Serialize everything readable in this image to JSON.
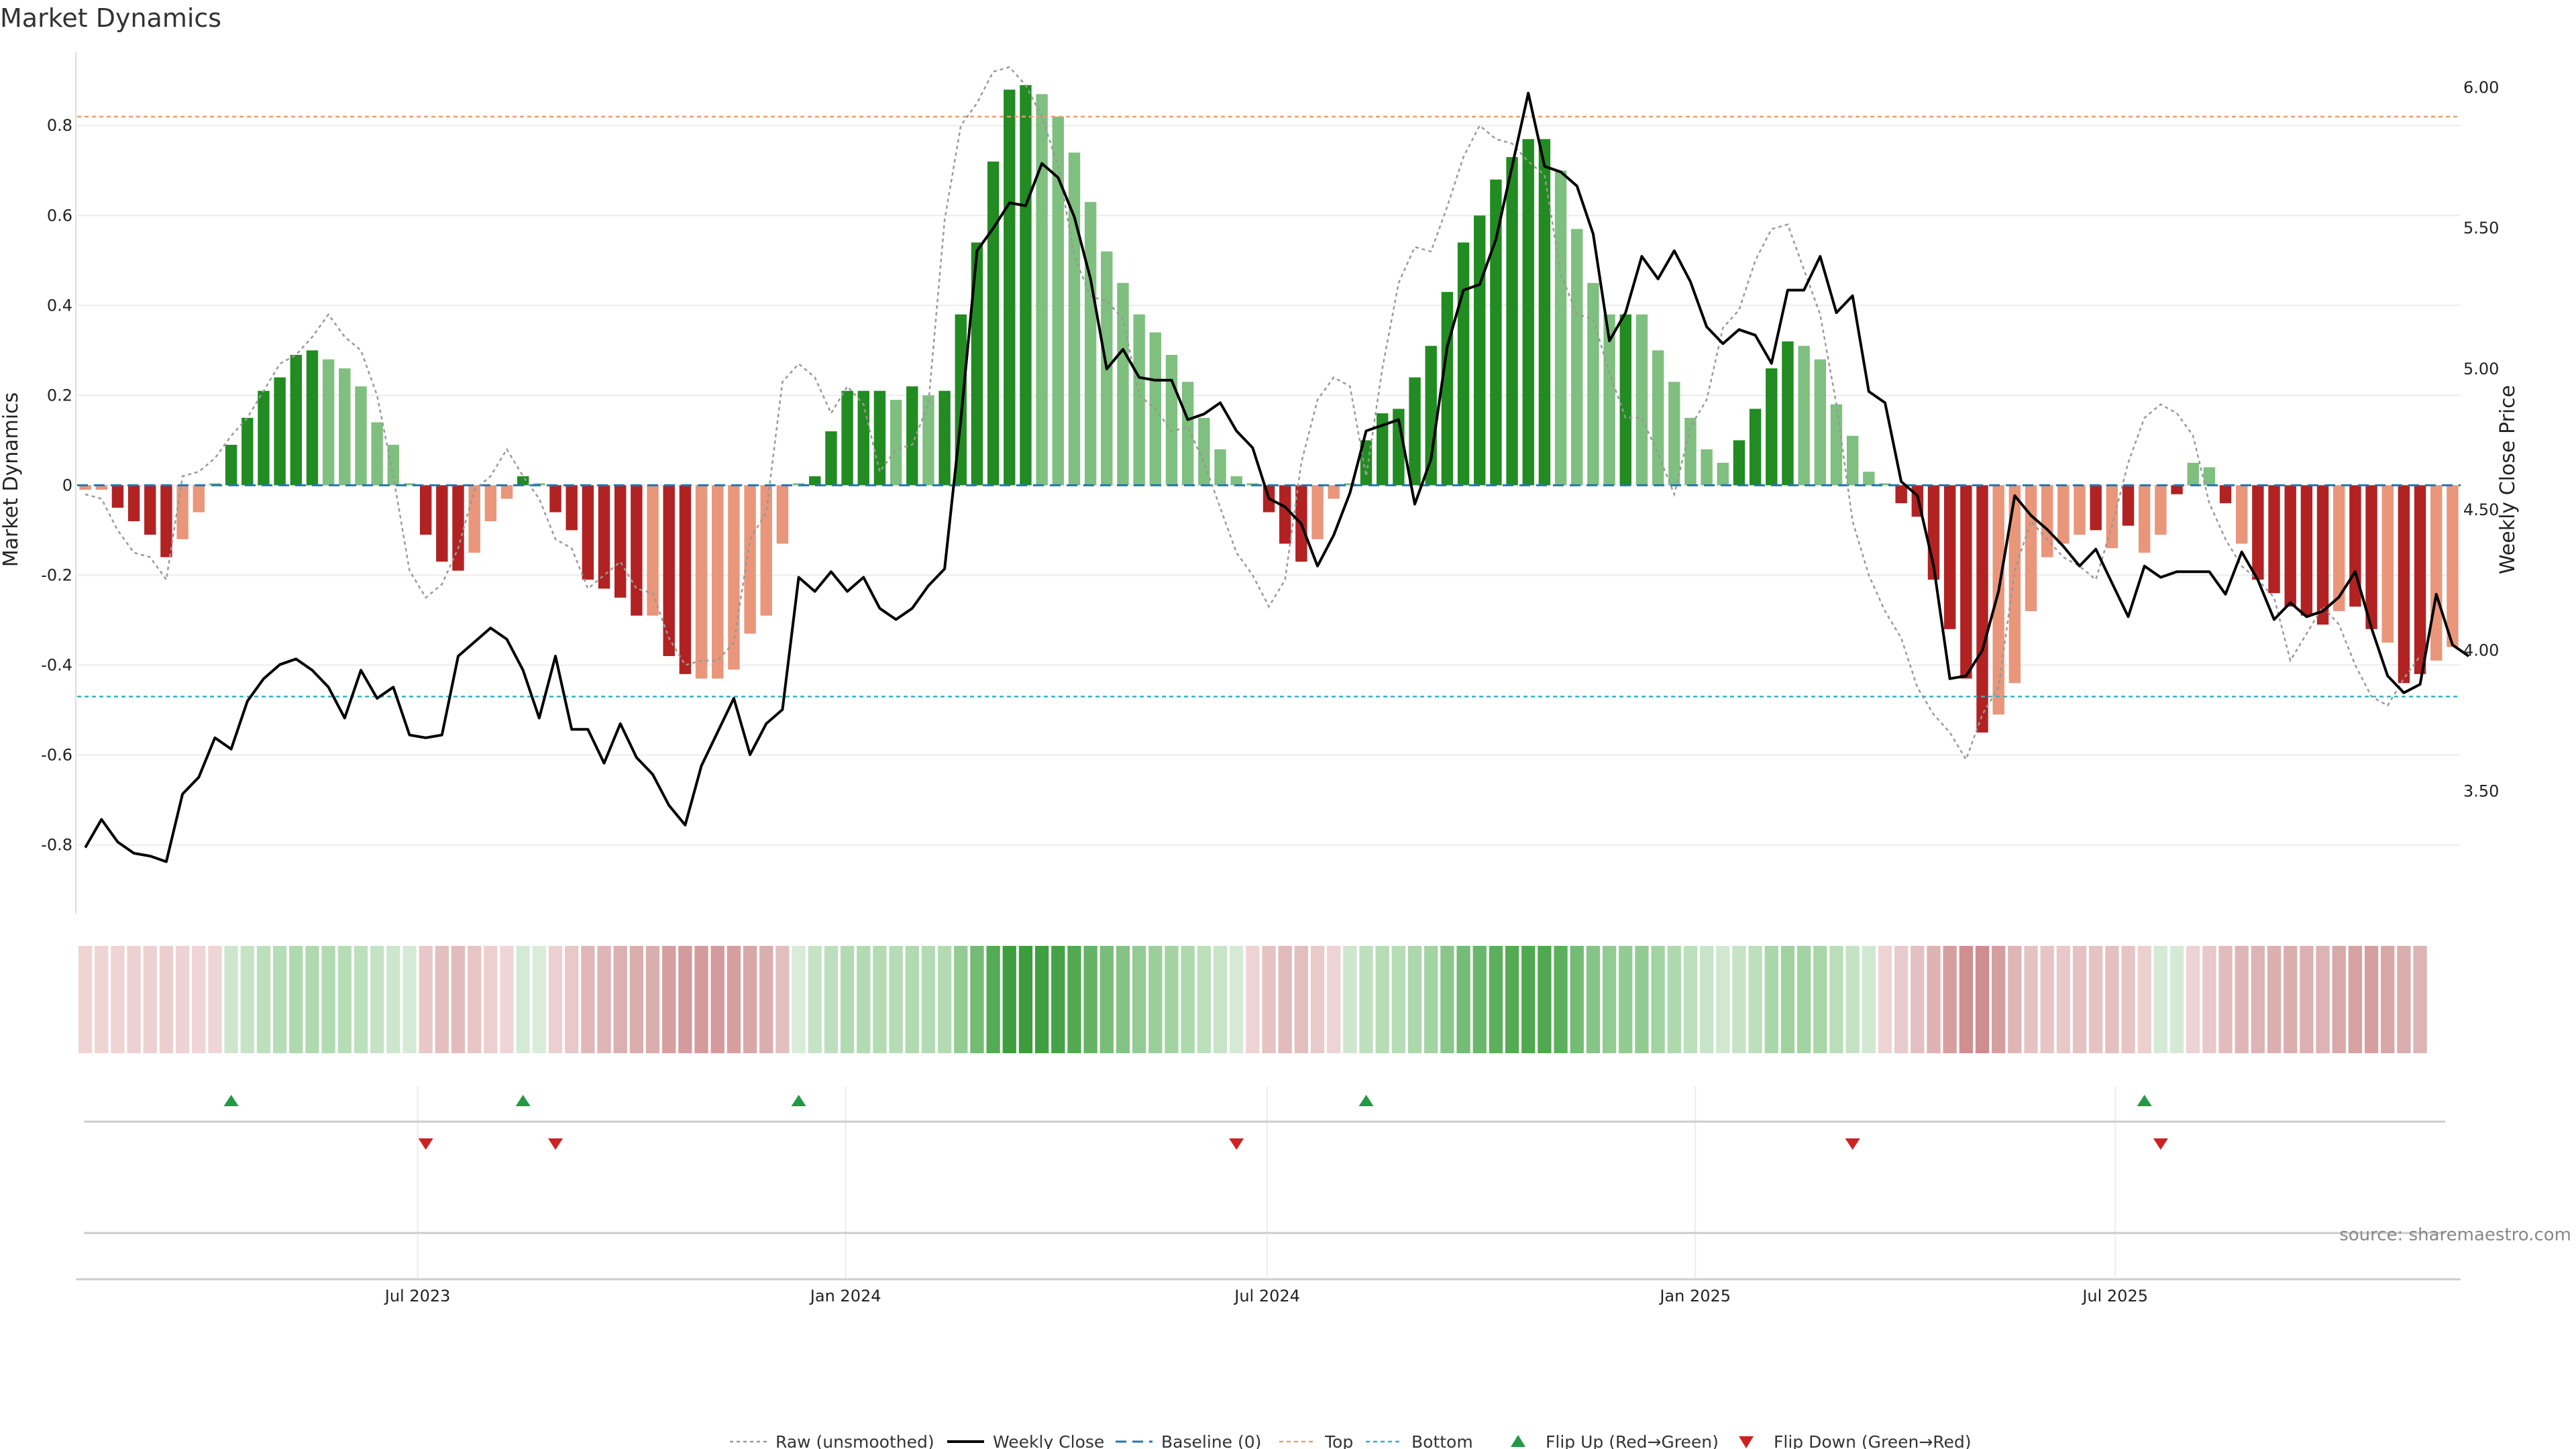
{
  "chart_data": {
    "type": "bar",
    "title": "Market Dynamics",
    "ylabel": "Market Dynamics",
    "y2label": "Weekly Close Price",
    "source": "source: sharemaestro.com",
    "ylim": [
      -0.95,
      0.96
    ],
    "y2lim": [
      3.07,
      6.12
    ],
    "yticks": [
      "-0.8",
      "-0.6",
      "-0.4",
      "-0.2",
      "0",
      "0.2",
      "0.4",
      "0.6",
      "0.8"
    ],
    "y2ticks": [
      "3.50",
      "4.00",
      "4.50",
      "5.00",
      "5.50",
      "6.00"
    ],
    "xticks": [
      {
        "label": "Jul 2023",
        "week": 20.5
      },
      {
        "label": "Jan 2024",
        "week": 46.9
      },
      {
        "label": "Jul 2024",
        "week": 72.9
      },
      {
        "label": "Jan 2025",
        "week": 99.3
      },
      {
        "label": "Jul 2025",
        "week": 125.2
      }
    ],
    "top_level": 0.82,
    "bottom_level": -0.47,
    "colors": {
      "strong_green": "#228b22",
      "light_green": "#7fbf7f",
      "strong_red": "#b22222",
      "light_red": "#e9967a",
      "top_line": "#e8a06a",
      "bottom_line": "#2ab6c8",
      "baseline": "#1f77b4",
      "raw": "#999999",
      "close": "#000000",
      "flip_up": "#229944",
      "flip_down": "#cc2222"
    },
    "smoothed": [
      -0.01,
      -0.01,
      -0.05,
      -0.08,
      -0.11,
      -0.16,
      -0.12,
      -0.06,
      0,
      0.09,
      0.15,
      0.21,
      0.24,
      0.29,
      0.3,
      0.28,
      0.26,
      0.22,
      0.14,
      0.09,
      0,
      -0.11,
      -0.17,
      -0.19,
      -0.15,
      -0.08,
      -0.03,
      0.02,
      0,
      -0.06,
      -0.1,
      -0.21,
      -0.23,
      -0.25,
      -0.29,
      -0.29,
      -0.38,
      -0.42,
      -0.43,
      -0.43,
      -0.41,
      -0.33,
      -0.29,
      -0.13,
      0,
      0.02,
      0.12,
      0.21,
      0.21,
      0.21,
      0.19,
      0.22,
      0.2,
      0.21,
      0.38,
      0.54,
      0.72,
      0.88,
      0.89,
      0.87,
      0.82,
      0.74,
      0.63,
      0.52,
      0.45,
      0.38,
      0.34,
      0.29,
      0.23,
      0.15,
      0.08,
      0.02,
      0,
      -0.06,
      -0.13,
      -0.17,
      -0.12,
      -0.03,
      0,
      0.1,
      0.16,
      0.17,
      0.24,
      0.31,
      0.43,
      0.54,
      0.6,
      0.68,
      0.73,
      0.77,
      0.77,
      0.7,
      0.57,
      0.45,
      0.38,
      0.38,
      0.38,
      0.3,
      0.23,
      0.15,
      0.08,
      0.05,
      0.1,
      0.17,
      0.26,
      0.32,
      0.31,
      0.28,
      0.18,
      0.11,
      0.03,
      0,
      -0.04,
      -0.07,
      -0.21,
      -0.32,
      -0.43,
      -0.55,
      -0.51,
      -0.44,
      -0.28,
      -0.16,
      -0.13,
      -0.11,
      -0.1,
      -0.14,
      -0.09,
      -0.15,
      -0.11,
      -0.02,
      0.05,
      0.04,
      -0.04,
      -0.13,
      -0.21,
      -0.24,
      -0.27,
      -0.29,
      -0.31,
      -0.28,
      -0.27,
      -0.32,
      -0.35,
      -0.44,
      -0.42,
      -0.39,
      -0.36
    ],
    "bar_shades": [
      "light",
      "light",
      "strong",
      "strong",
      "strong",
      "strong",
      "light",
      "light",
      "light",
      "strong",
      "strong",
      "strong",
      "strong",
      "strong",
      "strong",
      "light",
      "light",
      "light",
      "light",
      "light",
      "light",
      "strong",
      "strong",
      "strong",
      "light",
      "light",
      "light",
      "strong",
      "light",
      "strong",
      "strong",
      "strong",
      "strong",
      "strong",
      "strong",
      "light",
      "strong",
      "strong",
      "light",
      "light",
      "light",
      "light",
      "light",
      "light",
      "light",
      "strong",
      "strong",
      "strong",
      "strong",
      "strong",
      "light",
      "strong",
      "light",
      "strong",
      "strong",
      "strong",
      "strong",
      "strong",
      "strong",
      "light",
      "light",
      "light",
      "light",
      "light",
      "light",
      "light",
      "light",
      "light",
      "light",
      "light",
      "light",
      "light",
      "light",
      "strong",
      "strong",
      "strong",
      "light",
      "light",
      "light",
      "strong",
      "strong",
      "strong",
      "strong",
      "strong",
      "strong",
      "strong",
      "strong",
      "strong",
      "strong",
      "strong",
      "strong",
      "light",
      "light",
      "light",
      "light",
      "strong",
      "light",
      "light",
      "light",
      "light",
      "light",
      "light",
      "strong",
      "strong",
      "strong",
      "strong",
      "light",
      "light",
      "light",
      "light",
      "light",
      "light",
      "strong",
      "strong",
      "strong",
      "strong",
      "strong",
      "strong",
      "light",
      "light",
      "light",
      "light",
      "light",
      "light",
      "strong",
      "light",
      "strong",
      "light",
      "light",
      "strong",
      "light",
      "light",
      "strong",
      "light",
      "strong",
      "strong",
      "strong",
      "strong",
      "strong",
      "light",
      "strong",
      "strong",
      "light",
      "strong",
      "strong",
      "light",
      "light"
    ],
    "raw": [
      -0.02,
      -0.03,
      -0.1,
      -0.15,
      -0.16,
      -0.21,
      0.02,
      0.03,
      0.06,
      0.11,
      0.15,
      0.21,
      0.27,
      0.29,
      0.33,
      0.38,
      0.33,
      0.3,
      0.2,
      0.02,
      -0.19,
      -0.25,
      -0.22,
      -0.14,
      -0.01,
      0.02,
      0.08,
      0.02,
      -0.03,
      -0.12,
      -0.14,
      -0.23,
      -0.2,
      -0.17,
      -0.23,
      -0.24,
      -0.34,
      -0.4,
      -0.39,
      -0.39,
      -0.35,
      -0.12,
      -0.06,
      0.23,
      0.27,
      0.24,
      0.16,
      0.22,
      0.18,
      0.03,
      0.08,
      0.09,
      0.18,
      0.59,
      0.8,
      0.85,
      0.92,
      0.93,
      0.89,
      0.82,
      0.71,
      0.51,
      0.42,
      0.41,
      0.37,
      0.2,
      0.17,
      0.12,
      0.13,
      0.05,
      -0.05,
      -0.15,
      -0.2,
      -0.27,
      -0.21,
      0.05,
      0.19,
      0.24,
      0.22,
      0.02,
      0.26,
      0.45,
      0.53,
      0.52,
      0.62,
      0.73,
      0.8,
      0.77,
      0.76,
      0.72,
      0.69,
      0.47,
      0.38,
      0.37,
      0.25,
      0.15,
      0.15,
      0.07,
      -0.02,
      0.13,
      0.19,
      0.35,
      0.39,
      0.5,
      0.57,
      0.58,
      0.48,
      0.38,
      0.18,
      -0.08,
      -0.2,
      -0.28,
      -0.34,
      -0.45,
      -0.51,
      -0.55,
      -0.61,
      -0.51,
      -0.45,
      -0.19,
      -0.08,
      -0.12,
      -0.16,
      -0.18,
      -0.21,
      -0.09,
      0.05,
      0.15,
      0.18,
      0.16,
      0.11,
      -0.04,
      -0.12,
      -0.18,
      -0.21,
      -0.25,
      -0.39,
      -0.33,
      -0.27,
      -0.31,
      -0.4,
      -0.47,
      -0.49,
      -0.43,
      -0.38
    ],
    "close": [
      3.3,
      3.4,
      3.32,
      3.28,
      3.27,
      3.25,
      3.49,
      3.55,
      3.69,
      3.65,
      3.82,
      3.9,
      3.95,
      3.97,
      3.93,
      3.87,
      3.76,
      3.93,
      3.83,
      3.87,
      3.7,
      3.69,
      3.7,
      3.98,
      4.03,
      4.08,
      4.04,
      3.93,
      3.76,
      3.98,
      3.72,
      3.72,
      3.6,
      3.74,
      3.62,
      3.56,
      3.45,
      3.38,
      3.59,
      3.71,
      3.83,
      3.63,
      3.74,
      3.79,
      4.26,
      4.21,
      4.28,
      4.21,
      4.26,
      4.15,
      4.11,
      4.15,
      4.23,
      4.29,
      4.82,
      5.42,
      5.5,
      5.59,
      5.58,
      5.73,
      5.68,
      5.54,
      5.32,
      5.0,
      5.07,
      4.97,
      4.96,
      4.96,
      4.82,
      4.84,
      4.88,
      4.78,
      4.72,
      4.54,
      4.51,
      4.45,
      4.3,
      4.41,
      4.56,
      4.78,
      4.8,
      4.82,
      4.52,
      4.68,
      5.08,
      5.28,
      5.3,
      5.46,
      5.72,
      5.98,
      5.72,
      5.7,
      5.65,
      5.48,
      5.1,
      5.2,
      5.4,
      5.32,
      5.42,
      5.31,
      5.15,
      5.09,
      5.14,
      5.12,
      5.02,
      5.28,
      5.28,
      5.4,
      5.2,
      5.26,
      4.92,
      4.88,
      4.6,
      4.55,
      4.3,
      3.9,
      3.91,
      4.0,
      4.21,
      4.55,
      4.48,
      4.43,
      4.37,
      4.3,
      4.36,
      4.24,
      4.12,
      4.3,
      4.26,
      4.28,
      4.28,
      4.28,
      4.2,
      4.35,
      4.25,
      4.11,
      4.17,
      4.12,
      4.14,
      4.19,
      4.28,
      4.08,
      3.91,
      3.85,
      3.88,
      4.2,
      4.02,
      3.98
    ],
    "heat_strip": {
      "shades": [
        "#efd4d4",
        "#efd4d4",
        "#efd4d4",
        "#edd1d1",
        "#edd1d1",
        "#ecd0d0",
        "#edd3d3",
        "#efd5d5",
        "#efd5d5",
        "#cde6cd",
        "#c6e3c6",
        "#bcdfbc",
        "#b6ddb6",
        "#afdaaf",
        "#afdaaf",
        "#b2dbb2",
        "#b6ddb6",
        "#bcdfbc",
        "#c6e3c6",
        "#cde6cd",
        "#d4ead4",
        "#e8c8c8",
        "#e4bfbf",
        "#e2bcbc",
        "#e7c5c5",
        "#ecd0d0",
        "#efd5d5",
        "#d4ead4",
        "#d8ecd8",
        "#ecd0d0",
        "#e8c8c8",
        "#e0b7b7",
        "#dfb5b5",
        "#dcb0b0",
        "#dbaeae",
        "#dbaeae",
        "#d59f9f",
        "#d39c9c",
        "#d39b9b",
        "#d39b9b",
        "#d59f9f",
        "#d8a7a7",
        "#dbaeae",
        "#e4bfbf",
        "#d8ecd8",
        "#c6e3c6",
        "#bddfbd",
        "#b2dbb2",
        "#b2dbb2",
        "#b2dbb2",
        "#b5dcb5",
        "#b0dab0",
        "#b3dbb3",
        "#b2dbb2",
        "#93cc93",
        "#74bb74",
        "#55ab55",
        "#3e9e3e",
        "#3d9d3d",
        "#409f40",
        "#46a246",
        "#52a952",
        "#65b365",
        "#78bd78",
        "#85c385",
        "#93cc93",
        "#9acf9a",
        "#a2d3a2",
        "#add9ad",
        "#bcdfbc",
        "#c8e4c8",
        "#d4ead4",
        "#edd3d3",
        "#e6c3c3",
        "#e1babb",
        "#e3bebe",
        "#e9cbcb",
        "#edd3d3",
        "#cde6cd",
        "#bfe0bf",
        "#b6ddb6",
        "#b6ddb6",
        "#acd8ac",
        "#a3d4a3",
        "#8ac68a",
        "#76bb76",
        "#6ab66a",
        "#5caf5c",
        "#54ab54",
        "#50a850",
        "#50a850",
        "#5caf5c",
        "#74bb74",
        "#87c487",
        "#93cc93",
        "#93cc93",
        "#93cc93",
        "#a2d3a2",
        "#add9ad",
        "#bcdfbc",
        "#c8e4c8",
        "#d0e8d0",
        "#c6e3c6",
        "#bcdfbc",
        "#a9d7a9",
        "#a0d2a0",
        "#a2d3a2",
        "#a8d6a8",
        "#b9deb9",
        "#c5e2c5",
        "#d0e8d0",
        "#eed3d3",
        "#e9cbcb",
        "#e3c1c1",
        "#ddb3b3",
        "#d69f9f",
        "#d08f8f",
        "#cf8d8d",
        "#d69f9f",
        "#dfb5b5",
        "#e6c3c3",
        "#e7c5c5",
        "#e8c8c8",
        "#e5c1c1",
        "#e6c3c3",
        "#e4c0c0",
        "#e7c5c5",
        "#eccfcf",
        "#d4ead4",
        "#d4ead4",
        "#edd3d3",
        "#e8c8c8",
        "#e2bcbc",
        "#dfb5b5",
        "#ddb3b3",
        "#dcb0b0",
        "#dbaeae",
        "#dcb0b0",
        "#ddb3b3",
        "#d9a9a9",
        "#d6a2a2",
        "#d59f9f",
        "#d8a7a7",
        "#dbaeae",
        "#ddb3b3"
      ]
    },
    "flips_up": [
      9,
      27,
      44,
      79,
      127
    ],
    "flips_down": [
      21,
      29,
      71,
      109,
      128
    ],
    "legend": [
      {
        "label": "Raw (unsmoothed)",
        "kind": "raw"
      },
      {
        "label": "Weekly Close",
        "kind": "close"
      },
      {
        "label": "Baseline (0)",
        "kind": "baseline"
      },
      {
        "label": "Top",
        "kind": "top"
      },
      {
        "label": "Bottom",
        "kind": "bottom"
      },
      {
        "label": "Flip Up (Red→Green)",
        "kind": "flipup"
      },
      {
        "label": "Flip Down (Green→Red)",
        "kind": "flipdown"
      }
    ]
  }
}
